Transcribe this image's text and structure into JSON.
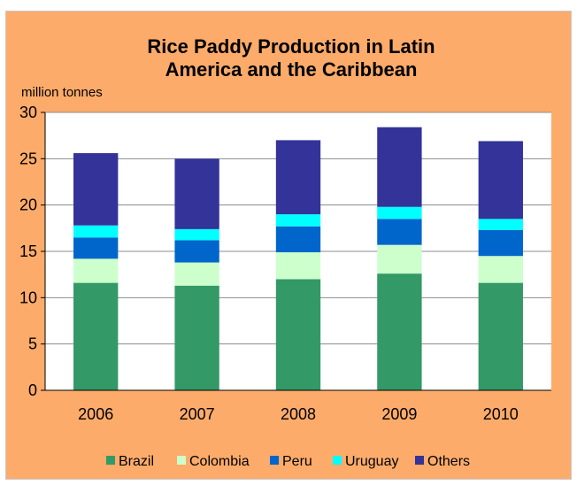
{
  "chart_data": {
    "type": "bar",
    "stacked": true,
    "title_lines": [
      "Rice Paddy Production in Latin",
      "America and the Caribbean"
    ],
    "ylabel": "million tonnes",
    "xlabel": "",
    "ylim": [
      0,
      30
    ],
    "yticks": [
      0,
      5,
      10,
      15,
      20,
      25,
      30
    ],
    "grid": true,
    "legend_position": "bottom",
    "categories": [
      "2006",
      "2007",
      "2008",
      "2009",
      "2010"
    ],
    "series": [
      {
        "name": "Brazil",
        "color": "#339966",
        "values": [
          11.6,
          11.3,
          12.0,
          12.6,
          11.6
        ]
      },
      {
        "name": "Colombia",
        "color": "#ccffcc",
        "values": [
          2.6,
          2.5,
          2.9,
          3.1,
          2.9
        ]
      },
      {
        "name": "Peru",
        "color": "#0066cc",
        "values": [
          2.3,
          2.4,
          2.8,
          2.8,
          2.8
        ]
      },
      {
        "name": "Uruguay",
        "color": "#00ffff",
        "values": [
          1.3,
          1.2,
          1.3,
          1.3,
          1.2
        ]
      },
      {
        "name": "Others",
        "color": "#333399",
        "values": [
          7.8,
          7.6,
          8.0,
          8.6,
          8.4
        ]
      }
    ],
    "background_color": "#fcab6a",
    "plot_background_color": "#ffffff"
  }
}
